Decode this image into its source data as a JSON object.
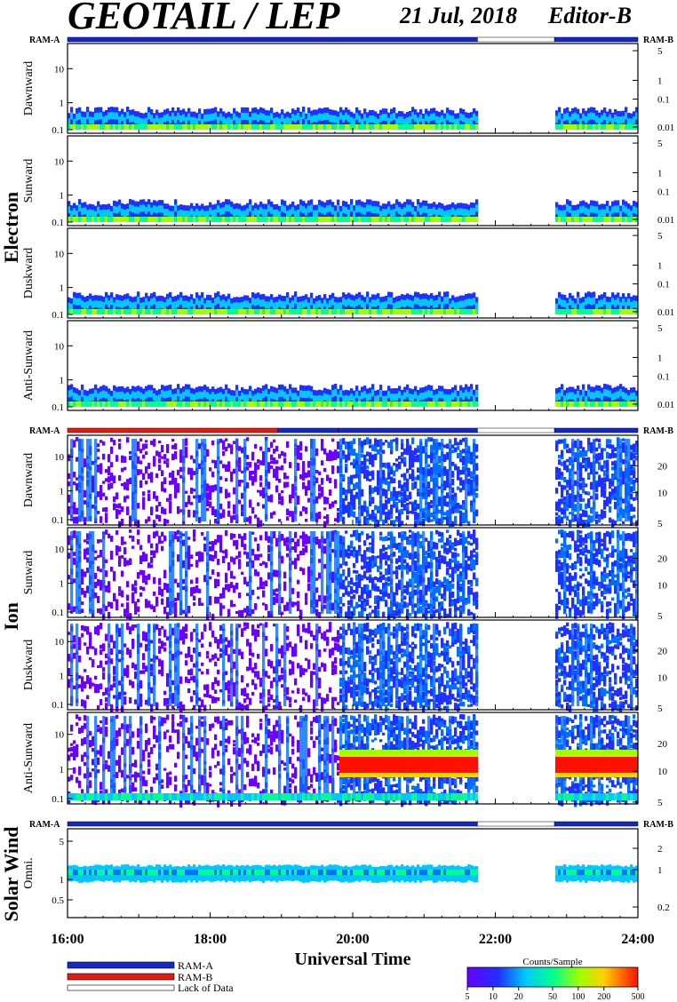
{
  "header": {
    "title": "GEOTAIL / LEP",
    "date": "21 Jul, 2018",
    "editor": "Editor-B"
  },
  "colors": {
    "ram_a": "#1428c8",
    "ram_b": "#dc1e14",
    "lack_of_data": "#ffffff"
  },
  "ram_labels": {
    "left": "RAM-A",
    "right": "RAM-B"
  },
  "groups": [
    {
      "name": "Electron",
      "panels": [
        "Dawnward",
        "Sunward",
        "Duskward",
        "Anti-Sunward"
      ]
    },
    {
      "name": "Ion",
      "panels": [
        "Dawnward",
        "Sunward",
        "Duskward",
        "Anti-Sunward"
      ]
    },
    {
      "name": "Solar Wind",
      "panels": [
        "Omni."
      ]
    }
  ],
  "chart_data": {
    "type": "heatmap",
    "title": "GEOTAIL / LEP",
    "xlabel": "Universal Time",
    "xlim_hours": [
      16,
      24
    ],
    "x_tick_labels": [
      "16:00",
      "18:00",
      "20:00",
      "22:00",
      "24:00"
    ],
    "data_gap_hours": [
      21.75,
      22.83
    ],
    "electron_left_ticks": [
      "10",
      "1",
      "0.1"
    ],
    "electron_right_ticks": [
      "5",
      "1",
      "0.1",
      "0.01"
    ],
    "ion_left_ticks": [
      "10",
      "1",
      "0.1"
    ],
    "ion_right_ticks": [
      "20",
      "10",
      "5"
    ],
    "sw_left_ticks": [
      "5",
      "1",
      "0.5"
    ],
    "sw_right_ticks": [
      "2",
      "1",
      "0.2"
    ],
    "ram_segments_electron": [
      {
        "start": 16.0,
        "end": 21.75,
        "mode": "RAM-A"
      },
      {
        "start": 21.75,
        "end": 22.83,
        "mode": "Lack of Data"
      },
      {
        "start": 22.83,
        "end": 24.0,
        "mode": "RAM-A"
      }
    ],
    "ram_segments_ion": [
      {
        "start": 16.0,
        "end": 18.95,
        "mode": "RAM-B"
      },
      {
        "start": 18.95,
        "end": 19.8,
        "mode": "RAM-A"
      },
      {
        "start": 19.8,
        "end": 21.75,
        "mode": "RAM-A"
      },
      {
        "start": 21.75,
        "end": 22.83,
        "mode": "Lack of Data"
      },
      {
        "start": 22.83,
        "end": 24.0,
        "mode": "RAM-A"
      }
    ],
    "ram_segments_sw": [
      {
        "start": 16.0,
        "end": 21.75,
        "mode": "RAM-A"
      },
      {
        "start": 21.75,
        "end": 22.83,
        "mode": "Lack of Data"
      },
      {
        "start": 22.83,
        "end": 24.0,
        "mode": "RAM-A"
      }
    ],
    "legend": {
      "items": [
        "RAM-A",
        "RAM-B",
        "Lack of Data"
      ],
      "position": "bottom-left"
    },
    "colorbar": {
      "title": "Counts/Sample",
      "ticks": [
        "5",
        "10",
        "20",
        "50",
        "100",
        "200",
        "500"
      ],
      "position": "bottom-right"
    }
  }
}
